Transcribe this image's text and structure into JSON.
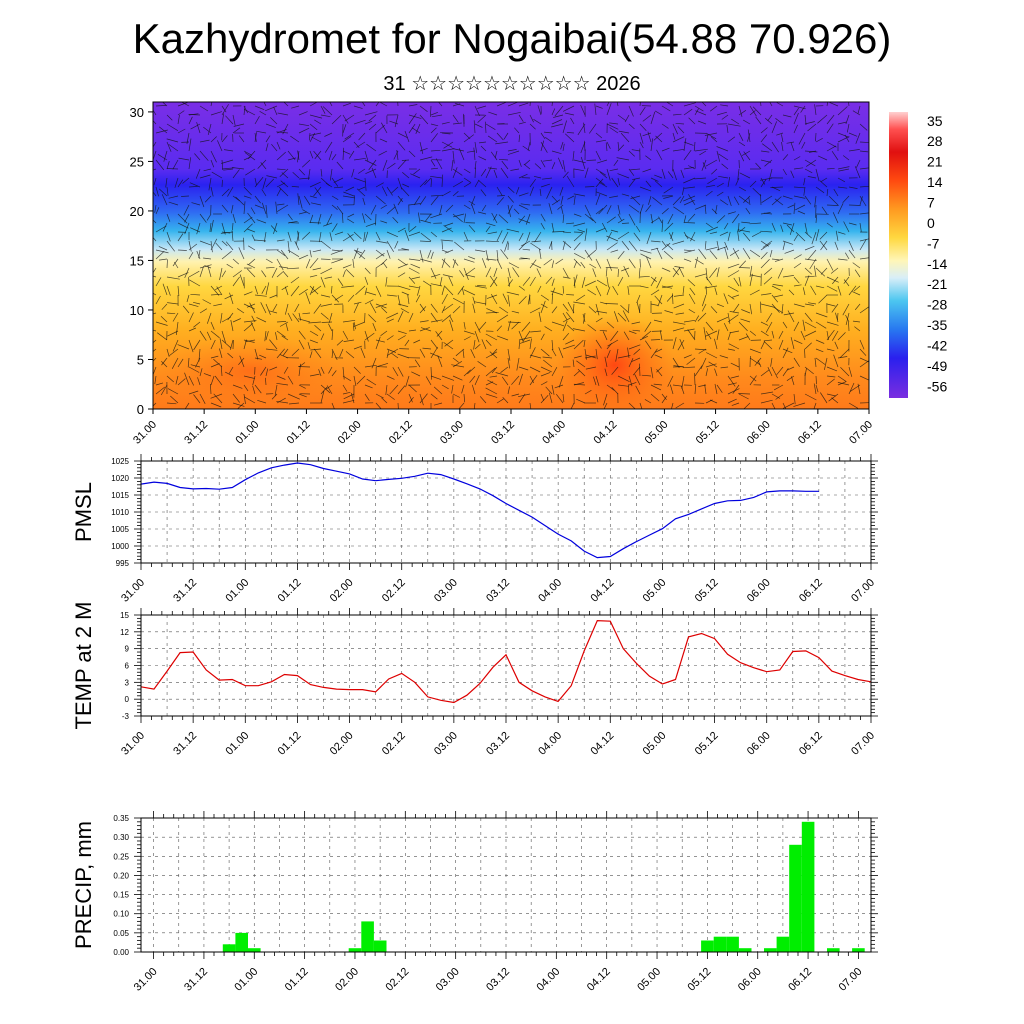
{
  "page": {
    "title": "Kazhydromet for Nogaibai(54.88 70.926)",
    "subtitle": "31 ☆☆☆☆☆☆☆☆☆☆ 2026"
  },
  "time_labels": [
    "31.00",
    "31.12",
    "01.00",
    "01.12",
    "02.00",
    "02.12",
    "03.00",
    "03.12",
    "04.00",
    "04.12",
    "05.00",
    "05.12",
    "06.00",
    "06.12",
    "07.00"
  ],
  "chart_data": [
    {
      "type": "heatmap",
      "name": "temperature-wind-cross-section",
      "x_ticks": [
        "31.00",
        "31.12",
        "01.00",
        "01.12",
        "02.00",
        "02.12",
        "03.00",
        "03.12",
        "04.00",
        "04.12",
        "05.00",
        "05.12",
        "06.00",
        "06.12",
        "07.00"
      ],
      "y_ticks": [
        0,
        5,
        10,
        15,
        20,
        25,
        30
      ],
      "ylim": [
        0,
        31
      ],
      "colorbar_labels": [
        35,
        28,
        21,
        14,
        7,
        0,
        -7,
        -14,
        -21,
        -28,
        -35,
        -42,
        -49,
        -56
      ],
      "colorbar_range": [
        -60,
        38
      ]
    },
    {
      "type": "line",
      "name": "pmsl",
      "ylabel": "PMSL",
      "ylim": [
        995,
        1025
      ],
      "y_ticks": [
        995,
        1000,
        1005,
        1010,
        1015,
        1020,
        1025
      ],
      "color": "#0000dd",
      "x_range": [
        0,
        7
      ],
      "x_ticks": [
        "31.00",
        "31.12",
        "01.00",
        "01.12",
        "02.00",
        "02.12",
        "03.00",
        "03.12",
        "04.00",
        "04.12",
        "05.00",
        "05.12",
        "06.00",
        "06.12",
        "07.00"
      ],
      "x": [
        0,
        0.125,
        0.25,
        0.375,
        0.5,
        0.625,
        0.75,
        0.875,
        1,
        1.125,
        1.25,
        1.375,
        1.5,
        1.625,
        1.75,
        1.875,
        2,
        2.125,
        2.25,
        2.375,
        2.5,
        2.625,
        2.75,
        2.875,
        3,
        3.125,
        3.25,
        3.375,
        3.5,
        3.625,
        3.75,
        3.875,
        4,
        4.125,
        4.25,
        4.375,
        4.5,
        4.625,
        4.75,
        4.875,
        5,
        5.125,
        5.25,
        5.375,
        5.5,
        5.625,
        5.75,
        5.875,
        6,
        6.125,
        6.25,
        6.375,
        6.5,
        6.625,
        6.75,
        6.875,
        7
      ],
      "values": [
        1018.2,
        1018.8,
        1018.4,
        1017.2,
        1016.8,
        1016.9,
        1016.7,
        1017.2,
        1019.5,
        1021.5,
        1023,
        1023.8,
        1024.4,
        1023.9,
        1022.8,
        1022,
        1021.2,
        1019.7,
        1019.2,
        1019.6,
        1019.9,
        1020.5,
        1021.4,
        1021,
        1019.7,
        1018.3,
        1016.8,
        1014.8,
        1012.5,
        1010.5,
        1008.5,
        1006,
        1003.5,
        1001.5,
        998.5,
        996.6,
        996.9,
        999.2,
        1001.3,
        1003.2,
        1005.1,
        1008,
        1009.3,
        1010.9,
        1012.5,
        1013.3,
        1013.4,
        1014.3,
        1015.9,
        1016.2,
        1016.2,
        1016.1,
        1016.1,
        null,
        null,
        null,
        null
      ]
    },
    {
      "type": "line",
      "name": "temp-2m",
      "ylabel": "TEMP at 2 M",
      "ylim": [
        -3,
        15
      ],
      "y_ticks": [
        -3,
        0,
        3,
        6,
        9,
        12,
        15
      ],
      "color": "#dd0000",
      "x_range": [
        0,
        7
      ],
      "x_ticks": [
        "31.00",
        "31.12",
        "01.00",
        "01.12",
        "02.00",
        "02.12",
        "03.00",
        "03.12",
        "04.00",
        "04.12",
        "05.00",
        "05.12",
        "06.00",
        "06.12",
        "07.00"
      ],
      "x": [
        0,
        0.125,
        0.25,
        0.375,
        0.5,
        0.625,
        0.75,
        0.875,
        1,
        1.125,
        1.25,
        1.375,
        1.5,
        1.625,
        1.75,
        1.875,
        2,
        2.125,
        2.25,
        2.375,
        2.5,
        2.625,
        2.75,
        2.875,
        3,
        3.125,
        3.25,
        3.375,
        3.5,
        3.625,
        3.75,
        3.875,
        4,
        4.125,
        4.25,
        4.375,
        4.5,
        4.625,
        4.75,
        4.875,
        5,
        5.125,
        5.25,
        5.375,
        5.5,
        5.625,
        5.75,
        5.875,
        6,
        6.125,
        6.25,
        6.375,
        6.5,
        6.625,
        6.75,
        6.875,
        7
      ],
      "values": [
        2.2,
        1.8,
        5,
        8.3,
        8.4,
        5.2,
        3.4,
        3.5,
        2.4,
        2.4,
        3.1,
        4.4,
        4.2,
        2.6,
        2.1,
        1.8,
        1.7,
        1.7,
        1.3,
        3.6,
        4.6,
        3,
        0.4,
        -0.2,
        -0.6,
        0.7,
        2.8,
        5.7,
        7.9,
        3,
        1.5,
        0.4,
        -0.4,
        2.4,
        8.6,
        14,
        13.9,
        9,
        6.4,
        4.1,
        2.7,
        3.5,
        11.1,
        11.7,
        10.8,
        8,
        6.5,
        5.6,
        4.9,
        5.2,
        8.5,
        8.6,
        7.4,
        5,
        4.2,
        3.5,
        3.1
      ]
    },
    {
      "type": "bar",
      "name": "precip",
      "ylabel": "PRECIP, mm",
      "ylim": [
        0,
        0.35
      ],
      "y_ticks": [
        0.0,
        0.05,
        0.1,
        0.15,
        0.2,
        0.25,
        0.3,
        0.35
      ],
      "y_tick_labels": [
        "0.00",
        "0.05",
        "0.10",
        "0.15",
        "0.20",
        "0.25",
        "0.30",
        "0.35"
      ],
      "color": "#00ee00",
      "x_range": [
        -0.125,
        7.125
      ],
      "x_ticks": [
        "31.00",
        "31.12",
        "01.00",
        "01.12",
        "02.00",
        "02.12",
        "03.00",
        "03.12",
        "04.00",
        "04.12",
        "05.00",
        "05.12",
        "06.00",
        "06.12",
        "07.00"
      ],
      "x": [
        0,
        0.125,
        0.25,
        0.375,
        0.5,
        0.625,
        0.75,
        0.875,
        1,
        1.125,
        1.25,
        1.375,
        1.5,
        1.625,
        1.75,
        1.875,
        2,
        2.125,
        2.25,
        2.375,
        2.5,
        2.625,
        2.75,
        2.875,
        3,
        3.125,
        3.25,
        3.375,
        3.5,
        3.625,
        3.75,
        3.875,
        4,
        4.125,
        4.25,
        4.375,
        4.5,
        4.625,
        4.75,
        4.875,
        5,
        5.125,
        5.25,
        5.375,
        5.5,
        5.625,
        5.75,
        5.875,
        6,
        6.125,
        6.25,
        6.375,
        6.5,
        6.625,
        6.75,
        6.875,
        7
      ],
      "values": [
        0,
        0,
        0,
        0,
        0,
        0,
        0.02,
        0.05,
        0.01,
        0,
        0,
        0,
        0,
        0,
        0,
        0,
        0.01,
        0.08,
        0.03,
        0,
        0,
        0,
        0,
        0,
        0,
        0,
        0,
        0,
        0,
        0,
        0,
        0,
        0,
        0,
        0,
        0,
        0,
        0,
        0,
        0,
        0,
        0,
        0,
        0,
        0.03,
        0.04,
        0.04,
        0.01,
        0,
        0.01,
        0.04,
        0.28,
        0.34,
        0,
        0.01,
        0,
        0.01
      ]
    }
  ]
}
